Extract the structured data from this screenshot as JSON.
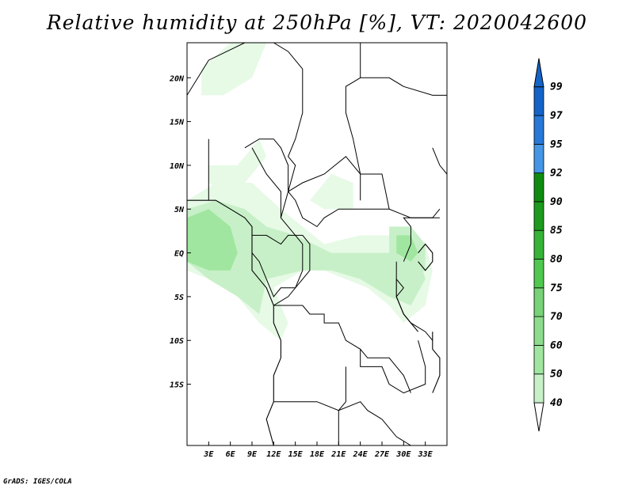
{
  "title": "Relative humidity at 250hPa [%], VT: 2020042600",
  "credit": "GrADS: IGES/COLA",
  "map": {
    "lon_range": [
      0,
      36
    ],
    "lat_range": [
      -22,
      24
    ],
    "lat_ticks": [
      {
        "value": 20,
        "label": "20N"
      },
      {
        "value": 15,
        "label": "15N"
      },
      {
        "value": 10,
        "label": "10N"
      },
      {
        "value": 5,
        "label": "5N"
      },
      {
        "value": 0,
        "label": "EQ"
      },
      {
        "value": -5,
        "label": "5S"
      },
      {
        "value": -10,
        "label": "10S"
      },
      {
        "value": -15,
        "label": "15S"
      }
    ],
    "lon_ticks": [
      {
        "value": 3,
        "label": "3E"
      },
      {
        "value": 6,
        "label": "6E"
      },
      {
        "value": 9,
        "label": "9E"
      },
      {
        "value": 12,
        "label": "12E"
      },
      {
        "value": 15,
        "label": "15E"
      },
      {
        "value": 18,
        "label": "18E"
      },
      {
        "value": 21,
        "label": "21E"
      },
      {
        "value": 24,
        "label": "24E"
      },
      {
        "value": 27,
        "label": "27E"
      },
      {
        "value": 30,
        "label": "30E"
      },
      {
        "value": 33,
        "label": "33E"
      }
    ],
    "humidity_areas": [
      {
        "level": 40,
        "color": "#e6fae6",
        "points": [
          [
            0,
            6
          ],
          [
            4,
            8
          ],
          [
            9,
            8
          ],
          [
            13,
            5
          ],
          [
            16,
            3
          ],
          [
            19,
            1
          ],
          [
            24,
            2
          ],
          [
            30,
            2
          ],
          [
            33,
            1
          ],
          [
            34,
            -2
          ],
          [
            33,
            -6
          ],
          [
            30,
            -8
          ],
          [
            28,
            -6
          ],
          [
            25,
            -4
          ],
          [
            22,
            -3
          ],
          [
            19,
            -2
          ],
          [
            16,
            -2
          ],
          [
            12,
            -4
          ],
          [
            14,
            -8
          ],
          [
            13,
            -10
          ],
          [
            10,
            -8
          ],
          [
            7,
            -5
          ],
          [
            3,
            -3
          ],
          [
            0,
            -2
          ]
        ]
      },
      {
        "level": 40,
        "color": "#e6fae6",
        "points": [
          [
            3,
            10
          ],
          [
            7,
            10
          ],
          [
            10,
            13
          ],
          [
            11,
            11
          ],
          [
            8,
            8
          ],
          [
            5,
            7
          ],
          [
            3,
            8
          ]
        ]
      },
      {
        "level": 40,
        "color": "#e6fae6",
        "points": [
          [
            2,
            21
          ],
          [
            6,
            24
          ],
          [
            11,
            24
          ],
          [
            9,
            20
          ],
          [
            5,
            18
          ],
          [
            2,
            18
          ]
        ]
      },
      {
        "level": 40,
        "color": "#e6fae6",
        "points": [
          [
            17,
            6
          ],
          [
            20,
            9
          ],
          [
            23,
            8
          ],
          [
            23,
            5
          ],
          [
            19,
            5
          ]
        ]
      },
      {
        "level": 50,
        "color": "#c8f0c8",
        "points": [
          [
            0,
            5
          ],
          [
            4,
            6
          ],
          [
            8,
            5
          ],
          [
            11,
            3
          ],
          [
            15,
            2
          ],
          [
            20,
            0
          ],
          [
            24,
            0
          ],
          [
            29,
            0
          ],
          [
            32,
            0
          ],
          [
            33,
            -3
          ],
          [
            31,
            -6
          ],
          [
            28,
            -5
          ],
          [
            24,
            -3
          ],
          [
            20,
            -2
          ],
          [
            16,
            -2
          ],
          [
            11,
            -3
          ],
          [
            10,
            -7
          ],
          [
            7,
            -5
          ],
          [
            3,
            -3
          ],
          [
            0,
            -1
          ]
        ]
      },
      {
        "level": 50,
        "color": "#c8f0c8",
        "points": [
          [
            28,
            3
          ],
          [
            31,
            3
          ],
          [
            33,
            1
          ],
          [
            33,
            -2
          ],
          [
            30,
            -3
          ],
          [
            28,
            0
          ]
        ]
      },
      {
        "level": 60,
        "color": "#a0e6a0",
        "points": [
          [
            0,
            4
          ],
          [
            3,
            5
          ],
          [
            6,
            3
          ],
          [
            7,
            0
          ],
          [
            6,
            -2
          ],
          [
            3,
            -2
          ],
          [
            0,
            -1
          ]
        ]
      },
      {
        "level": 60,
        "color": "#a0e6a0",
        "points": [
          [
            29,
            2
          ],
          [
            31,
            2
          ],
          [
            32,
            0
          ],
          [
            31,
            -1
          ],
          [
            29,
            0
          ]
        ]
      }
    ],
    "borders": [
      [
        [
          0,
          18
        ],
        [
          3,
          22
        ],
        [
          8,
          24
        ],
        [
          12,
          24
        ],
        [
          14,
          23
        ],
        [
          16,
          21
        ],
        [
          16,
          16
        ],
        [
          15,
          13
        ],
        [
          14,
          11
        ],
        [
          15,
          10
        ],
        [
          14,
          7
        ],
        [
          13,
          4
        ]
      ],
      [
        [
          24,
          24
        ],
        [
          24,
          20
        ],
        [
          22,
          19
        ],
        [
          22,
          16
        ],
        [
          23,
          13
        ],
        [
          24,
          9
        ],
        [
          24,
          6
        ]
      ],
      [
        [
          14,
          7
        ],
        [
          16,
          8
        ],
        [
          19,
          9
        ],
        [
          22,
          11
        ],
        [
          23,
          10
        ],
        [
          24,
          9
        ],
        [
          27,
          9
        ],
        [
          28,
          5
        ],
        [
          31,
          4
        ],
        [
          34,
          4
        ],
        [
          35,
          5
        ]
      ],
      [
        [
          14,
          7
        ],
        [
          15,
          6
        ],
        [
          16,
          4
        ],
        [
          18,
          3
        ],
        [
          19,
          4
        ],
        [
          21,
          5
        ],
        [
          23,
          5
        ],
        [
          25,
          5
        ],
        [
          27,
          5
        ],
        [
          28,
          5
        ]
      ],
      [
        [
          8,
          12
        ],
        [
          10,
          13
        ],
        [
          12,
          13
        ],
        [
          13,
          12
        ],
        [
          14,
          10
        ],
        [
          14,
          7
        ]
      ],
      [
        [
          3,
          13
        ],
        [
          3,
          10
        ],
        [
          3,
          7
        ],
        [
          3,
          6
        ]
      ],
      [
        [
          9,
          12
        ],
        [
          11,
          9
        ],
        [
          13,
          7
        ],
        [
          13,
          4
        ],
        [
          15,
          2
        ],
        [
          16,
          1
        ],
        [
          16,
          -2
        ],
        [
          15,
          -4
        ],
        [
          14,
          -5
        ],
        [
          12,
          -6
        ]
      ],
      [
        [
          9,
          2
        ],
        [
          11,
          2
        ],
        [
          13,
          1
        ],
        [
          14,
          2
        ],
        [
          16,
          2
        ],
        [
          17,
          1
        ],
        [
          17,
          -2
        ],
        [
          16,
          -3
        ],
        [
          15,
          -4
        ],
        [
          13,
          -4
        ],
        [
          12,
          -5
        ],
        [
          11,
          -3
        ],
        [
          10,
          -1
        ],
        [
          9,
          0
        ]
      ],
      [
        [
          12,
          -6
        ],
        [
          16,
          -6
        ],
        [
          17,
          -7
        ],
        [
          19,
          -7
        ],
        [
          19,
          -8
        ],
        [
          21,
          -8
        ],
        [
          22,
          -10
        ],
        [
          24,
          -11
        ],
        [
          25,
          -12
        ],
        [
          28,
          -12
        ],
        [
          29,
          -13
        ],
        [
          30,
          -14
        ],
        [
          31,
          -16
        ]
      ],
      [
        [
          30,
          -1
        ],
        [
          31,
          1
        ],
        [
          31,
          3
        ],
        [
          30,
          4
        ],
        [
          32,
          4
        ],
        [
          34,
          4
        ],
        [
          35,
          4
        ]
      ],
      [
        [
          29,
          -1
        ],
        [
          29,
          -3
        ],
        [
          30,
          -4
        ],
        [
          29,
          -5
        ],
        [
          30,
          -7
        ],
        [
          31,
          -8
        ],
        [
          33,
          -9
        ],
        [
          34,
          -10
        ]
      ],
      [
        [
          12,
          -17
        ],
        [
          14,
          -17
        ],
        [
          18,
          -17
        ],
        [
          21,
          -18
        ],
        [
          24,
          -17
        ],
        [
          25,
          -18
        ],
        [
          27,
          -19
        ]
      ],
      [
        [
          22,
          -13
        ],
        [
          22,
          -17
        ],
        [
          21,
          -18
        ],
        [
          21,
          -22
        ]
      ],
      [
        [
          24,
          -11
        ],
        [
          24,
          -13
        ],
        [
          27,
          -13
        ],
        [
          28,
          -15
        ],
        [
          30,
          -16
        ],
        [
          33,
          -15
        ],
        [
          33,
          -13
        ],
        [
          32,
          -10
        ]
      ],
      [
        [
          27,
          -19
        ],
        [
          29,
          -21
        ],
        [
          31,
          -22
        ]
      ],
      [
        [
          34,
          12
        ],
        [
          35,
          10
        ],
        [
          36,
          9
        ]
      ],
      [
        [
          24,
          20
        ],
        [
          28,
          20
        ],
        [
          30,
          19
        ],
        [
          34,
          18
        ],
        [
          36,
          18
        ]
      ]
    ],
    "coastline": [
      [
        [
          0,
          6
        ],
        [
          2,
          6
        ],
        [
          4,
          6
        ],
        [
          6,
          5
        ],
        [
          8,
          4
        ],
        [
          9,
          3
        ],
        [
          9,
          1
        ],
        [
          9,
          0
        ],
        [
          9,
          -2
        ],
        [
          10,
          -3
        ],
        [
          11,
          -4
        ],
        [
          12,
          -6
        ],
        [
          12,
          -8
        ],
        [
          13,
          -10
        ],
        [
          13,
          -12
        ],
        [
          12,
          -14
        ],
        [
          12,
          -17
        ],
        [
          11,
          -19
        ],
        [
          12,
          -22
        ]
      ],
      [
        [
          32,
          -1
        ],
        [
          33,
          -2
        ],
        [
          34,
          -1
        ],
        [
          34,
          0
        ],
        [
          33,
          1
        ],
        [
          32,
          0
        ]
      ],
      [
        [
          29,
          -3
        ],
        [
          29,
          -5
        ],
        [
          30,
          -7
        ],
        [
          31,
          -8
        ],
        [
          32,
          -9
        ]
      ],
      [
        [
          34,
          -9
        ],
        [
          34,
          -11
        ],
        [
          35,
          -12
        ],
        [
          35,
          -14
        ],
        [
          34,
          -16
        ]
      ]
    ]
  },
  "colorbar": {
    "levels": [
      {
        "label": "40",
        "color": "#e6fae6"
      },
      {
        "label": "50",
        "color": "#c8f0c8"
      },
      {
        "label": "60",
        "color": "#a0e6a0"
      },
      {
        "label": "70",
        "color": "#8cdc8c"
      },
      {
        "label": "75",
        "color": "#78d278"
      },
      {
        "label": "80",
        "color": "#50c850"
      },
      {
        "label": "85",
        "color": "#37b437"
      },
      {
        "label": "90",
        "color": "#1e9b1e"
      },
      {
        "label": "92",
        "color": "#0f8c0f"
      },
      {
        "label": "95",
        "color": "#4696e6"
      },
      {
        "label": "97",
        "color": "#2878d8"
      },
      {
        "label": "99",
        "color": "#1464c8"
      }
    ],
    "bottom_color": "#ffffff",
    "top_color": "#1464c8"
  }
}
